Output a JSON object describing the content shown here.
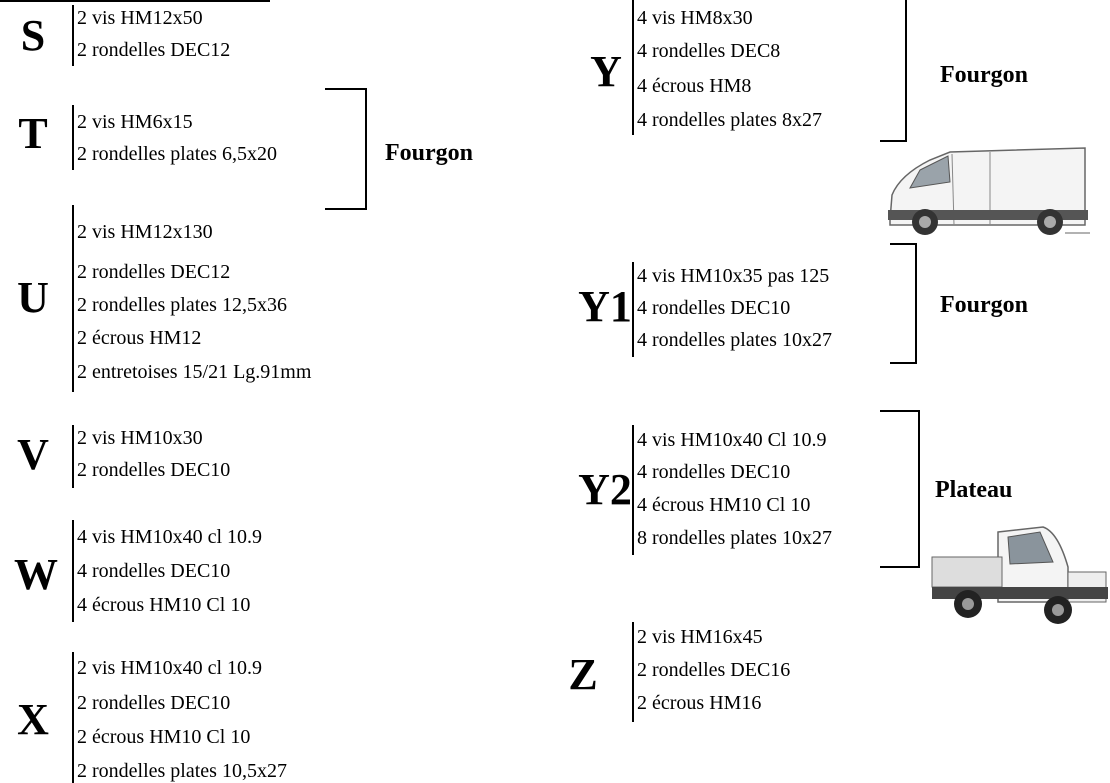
{
  "groups": [
    {
      "letter": "S",
      "items": [
        "2 vis HM12x50",
        "2 rondelles DEC12"
      ]
    },
    {
      "letter": "T",
      "items": [
        "2 vis HM6x15",
        "2 rondelles plates 6,5x20"
      ],
      "tag": "Fourgon"
    },
    {
      "letter": "U",
      "items": [
        "2 vis HM12x130",
        "2 rondelles DEC12",
        "2 rondelles plates 12,5x36",
        "2 écrous HM12",
        "2 entretoises 15/21 Lg.91mm"
      ]
    },
    {
      "letter": "V",
      "items": [
        "2 vis HM10x30",
        "2 rondelles DEC10"
      ]
    },
    {
      "letter": "W",
      "items": [
        "4 vis HM10x40 cl 10.9",
        "4 rondelles DEC10",
        "4 écrous HM10 Cl 10"
      ]
    },
    {
      "letter": "X",
      "items": [
        "2 vis HM10x40 cl 10.9",
        "2 rondelles DEC10",
        "2 écrous HM10 Cl 10",
        "2 rondelles plates 10,5x27"
      ]
    },
    {
      "letter": "Y",
      "items": [
        "4 vis HM8x30",
        "4 rondelles DEC8",
        "4 écrous HM8",
        "4 rondelles plates 8x27"
      ],
      "tag": "Fourgon"
    },
    {
      "letter": "Y1",
      "items": [
        "4 vis HM10x35 pas 125",
        "4 rondelles DEC10",
        "4 rondelles plates 10x27"
      ],
      "tag": "Fourgon"
    },
    {
      "letter": "Y2",
      "items": [
        "4 vis HM10x40 Cl 10.9",
        "4 rondelles DEC10",
        "4 écrous HM10 Cl 10",
        "8 rondelles plates 10x27"
      ],
      "tag": "Plateau"
    },
    {
      "letter": "Z",
      "items": [
        "2 vis HM16x45",
        "2 rondelles DEC16",
        "2 écrous HM16"
      ]
    }
  ]
}
